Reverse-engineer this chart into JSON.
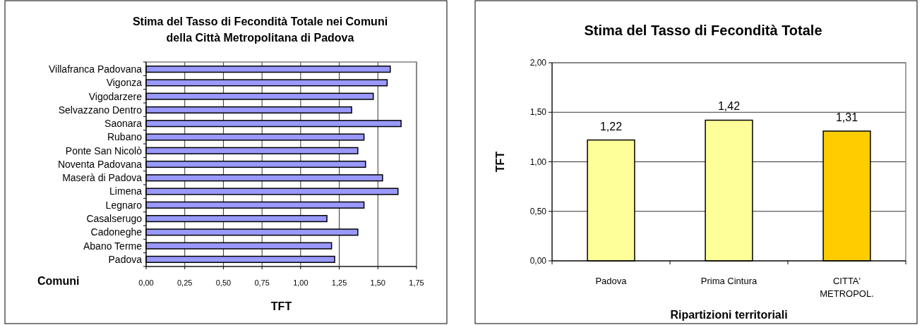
{
  "chart_data": [
    {
      "type": "bar",
      "orientation": "horizontal",
      "title": "Stima del Tasso di Fecondità Totale nei Comuni della Città Metropolitana di Padova",
      "xlabel": "TFT",
      "ylabel": "Comuni",
      "categories": [
        "Villafranca Padovana",
        "Vigonza",
        "Vigodarzere",
        "Selvazzano Dentro",
        "Saonara",
        "Rubano",
        "Ponte San Nicolò",
        "Noventa Padovana",
        "Maserà di Padova",
        "Limena",
        "Legnaro",
        "Casalserugo",
        "Cadoneghe",
        "Abano Terme",
        "Padova"
      ],
      "values": [
        1.58,
        1.56,
        1.47,
        1.33,
        1.65,
        1.41,
        1.37,
        1.42,
        1.53,
        1.63,
        1.41,
        1.17,
        1.37,
        1.2,
        1.22
      ],
      "color": "#9999ff",
      "xlim": [
        0,
        1.75
      ],
      "xticks": [
        {
          "value": 0,
          "label": "0,00"
        },
        {
          "value": 0.25,
          "label": "0,25"
        },
        {
          "value": 0.5,
          "label": "0,50"
        },
        {
          "value": 0.75,
          "label": "0,75"
        },
        {
          "value": 1,
          "label": "1,00"
        },
        {
          "value": 1.25,
          "label": "1,25"
        },
        {
          "value": 1.5,
          "label": "1,50"
        },
        {
          "value": 1.75,
          "label": "1,75"
        }
      ],
      "grid": "x"
    },
    {
      "type": "bar",
      "title": "Stima del Tasso di Fecondità Totale",
      "xlabel": "Ripartizioni territoriali",
      "ylabel": "TFT",
      "categories": [
        "Padova",
        "Prima Cintura",
        "CITTA' METROPOL."
      ],
      "values": [
        1.22,
        1.42,
        1.31
      ],
      "value_labels": [
        "1,22",
        "1,42",
        "1,31"
      ],
      "colors": [
        "#ffff99",
        "#ffff99",
        "#ffcc00"
      ],
      "ylim": [
        0,
        2
      ],
      "yticks": [
        {
          "value": 0,
          "label": "0,00"
        },
        {
          "value": 0.5,
          "label": "0,50"
        },
        {
          "value": 1,
          "label": "1,00"
        },
        {
          "value": 1.5,
          "label": "1,50"
        },
        {
          "value": 2,
          "label": "2,00"
        }
      ],
      "grid": "y"
    }
  ]
}
